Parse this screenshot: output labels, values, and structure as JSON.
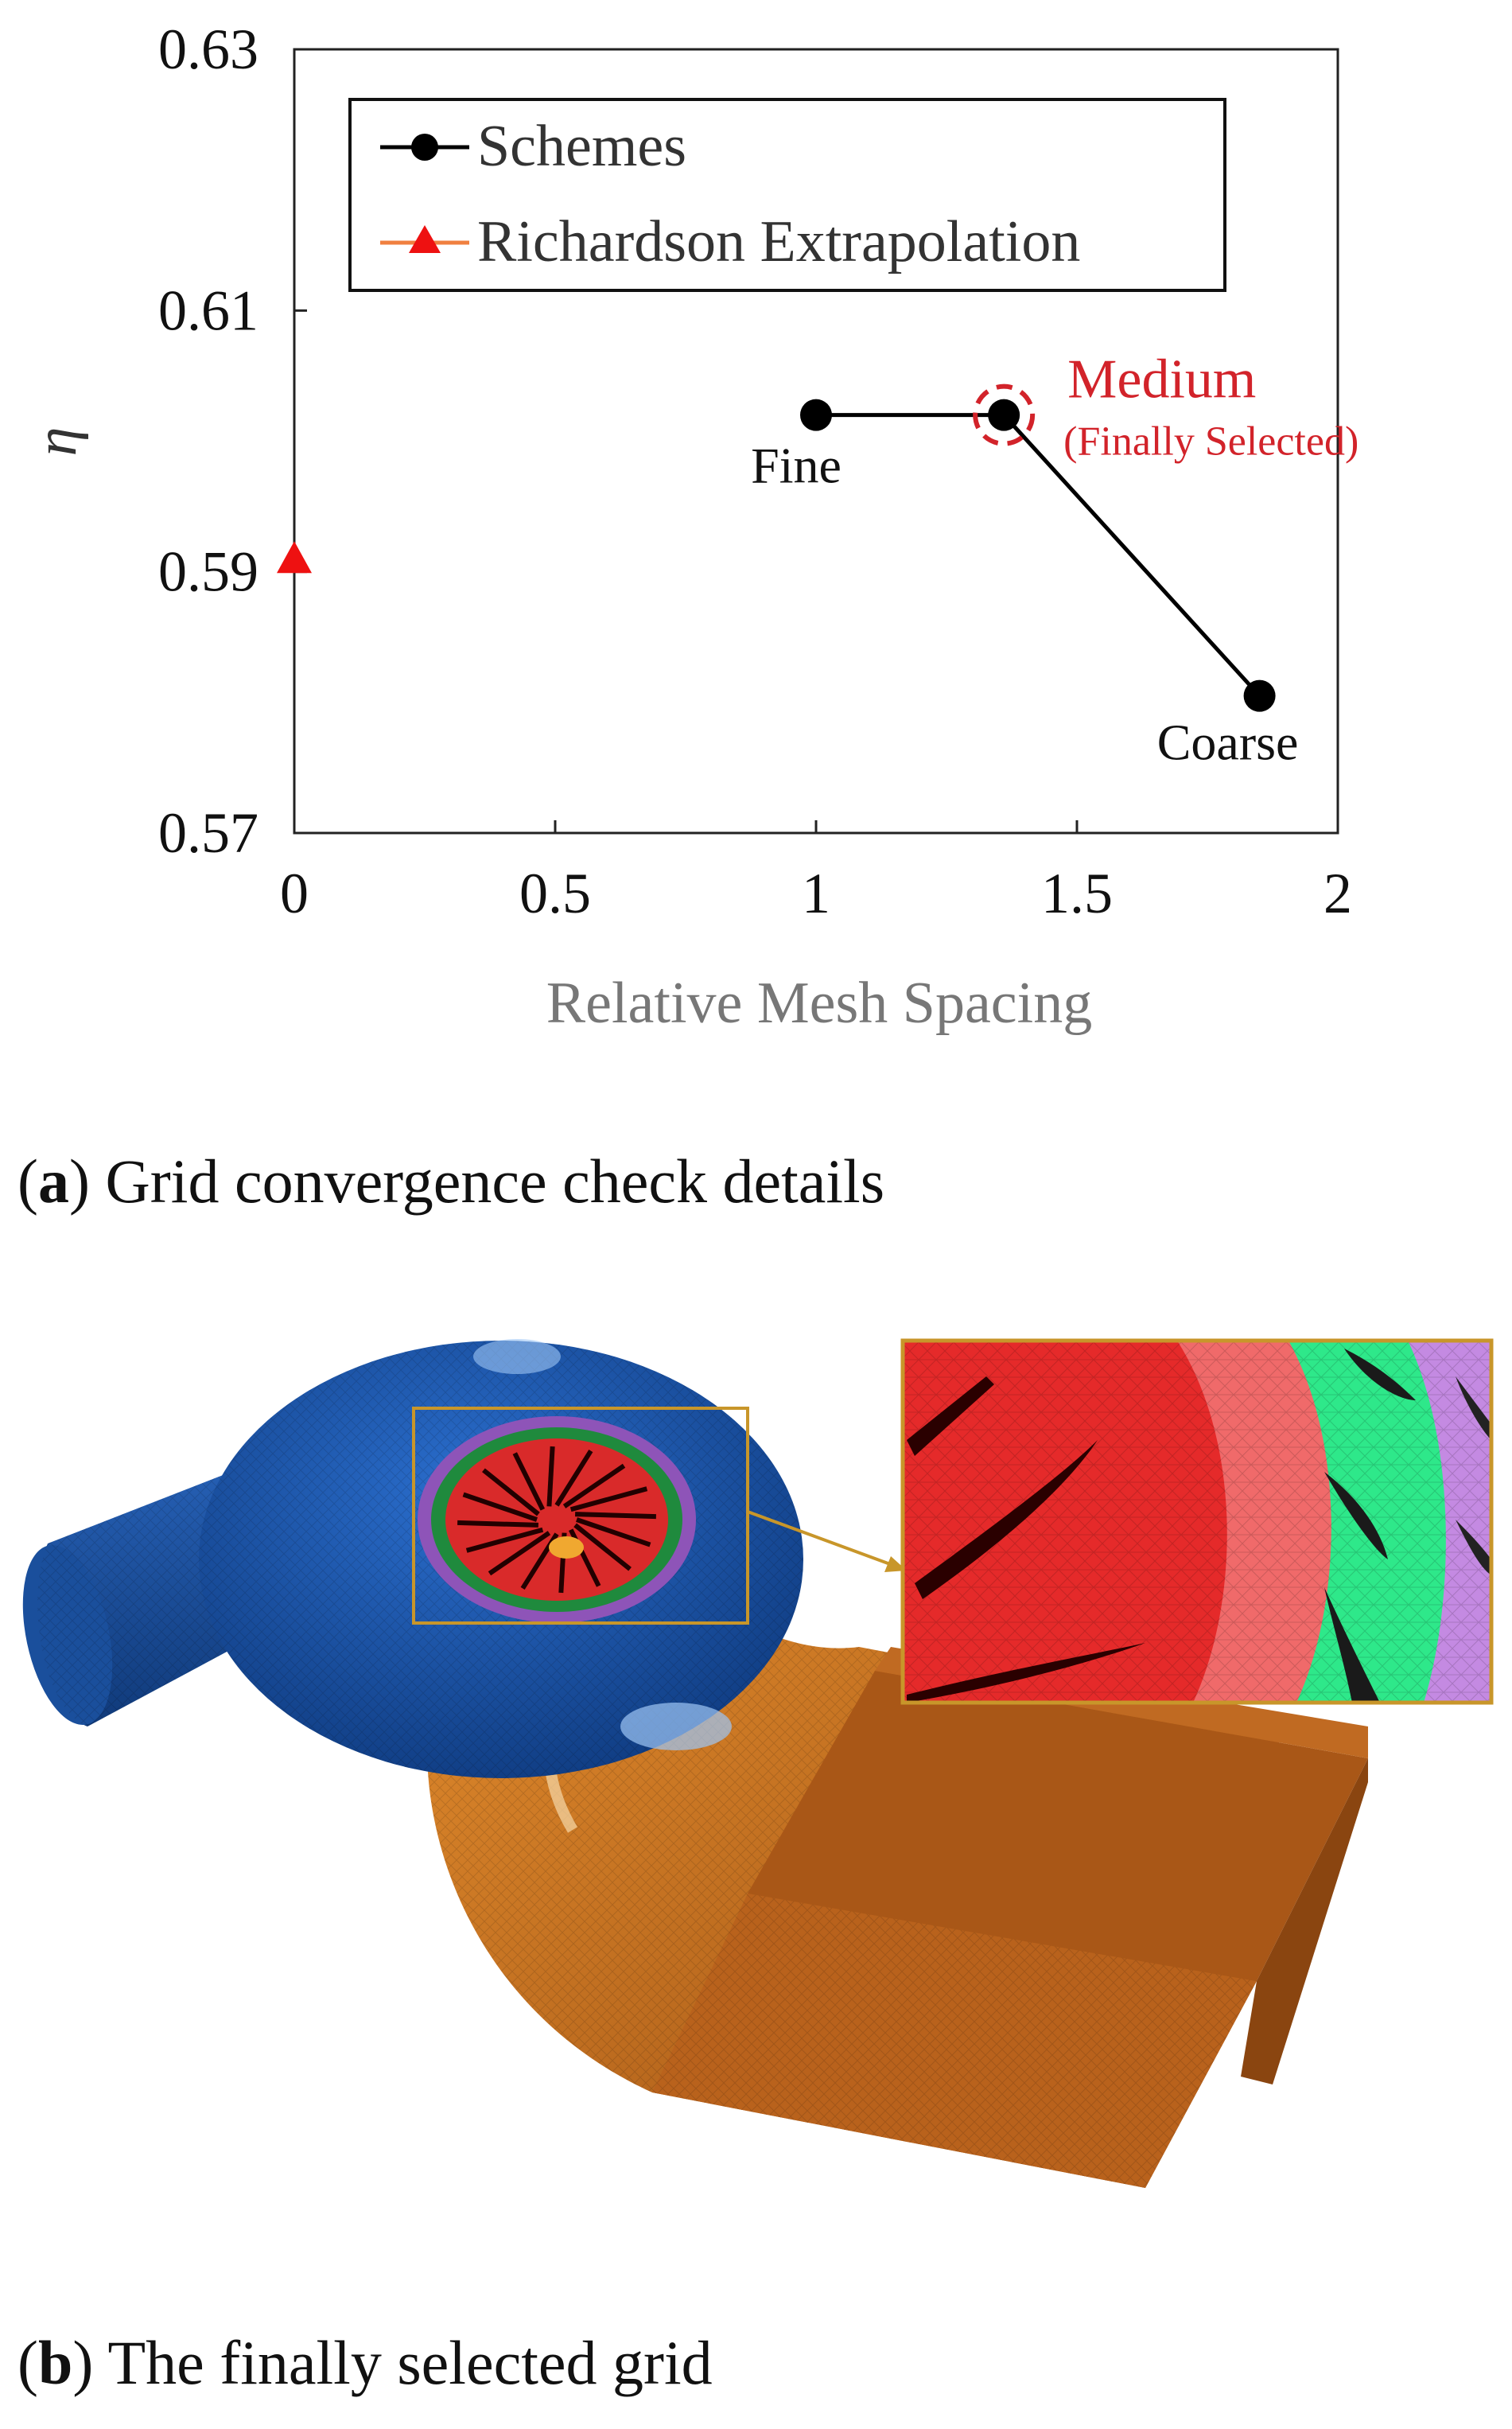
{
  "chart_data": {
    "type": "scatter",
    "ylabel": "η",
    "xlabel": "Relative Mesh Spacing",
    "xlim": [
      0,
      2
    ],
    "ylim": [
      0.57,
      0.63
    ],
    "xticks": [
      "0",
      "0.5",
      "1",
      "1.5",
      "2"
    ],
    "yticks": [
      "0.57",
      "0.59",
      "0.61",
      "0.63"
    ],
    "grid": false,
    "legend_placement": "top-left",
    "series": [
      {
        "name": "Schemes",
        "color": "#000000",
        "marker": "circle",
        "line": true,
        "points": [
          {
            "x": 1.0,
            "y": 0.602,
            "label": "Fine"
          },
          {
            "x": 1.36,
            "y": 0.602,
            "label": "Medium"
          },
          {
            "x": 1.85,
            "y": 0.5805,
            "label": "Coarse"
          }
        ]
      },
      {
        "name": "Richardson Extrapolation",
        "color": "#ee1111",
        "marker": "triangle",
        "line_color": "#f08040",
        "points": [
          {
            "x": 0.0,
            "y": 0.591
          }
        ]
      }
    ],
    "annotations": {
      "medium_main": "Medium",
      "medium_sub": "(Finally Selected)",
      "highlight_color": "#d2232a"
    }
  },
  "captions": {
    "a_letter": "a",
    "a_text": " Grid convergence check details",
    "b_letter": "b",
    "b_text": " The finally selected grid"
  },
  "mesh_colors": {
    "volute": "#1d57a8",
    "draft_tube": "#c46a1c",
    "runner": "#e53030",
    "guide_vanes": "#22d47a",
    "stay_vanes": "#b57ad6",
    "inset_border": "#c8962a"
  }
}
